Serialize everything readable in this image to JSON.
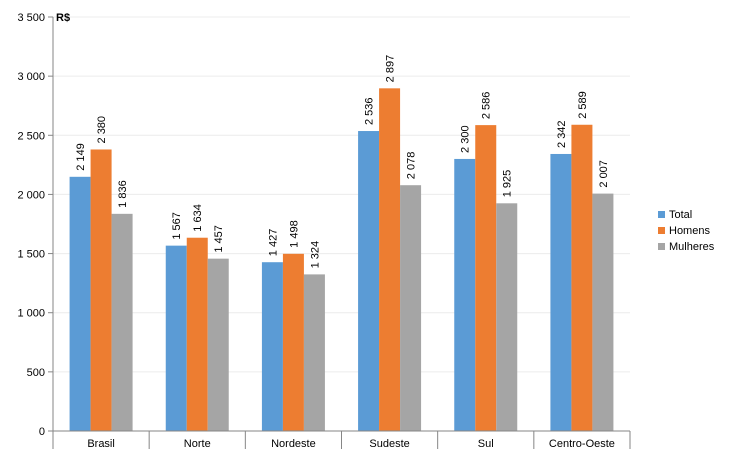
{
  "chart_data": {
    "type": "bar",
    "title": "",
    "xlabel": "",
    "ylabel": "R$",
    "ylim": [
      0,
      3500
    ],
    "yticks": [
      0,
      500,
      1000,
      1500,
      2000,
      2500,
      3000,
      3500
    ],
    "ytick_labels": [
      "0",
      "500",
      "1 000",
      "1 500",
      "2 000",
      "2 500",
      "3 000",
      "3 500"
    ],
    "grid": true,
    "legend_position": "right",
    "categories": [
      "Brasil",
      "Norte",
      "Nordeste",
      "Sudeste",
      "Sul",
      "Centro-Oeste"
    ],
    "series": [
      {
        "name": "Total",
        "color": "#5b9bd5",
        "values": [
          2149,
          1567,
          1427,
          2536,
          2300,
          2342
        ],
        "labels": [
          "2 149",
          "1 567",
          "1 427",
          "2 536",
          "2 300",
          "2 342"
        ]
      },
      {
        "name": "Homens",
        "color": "#ed7d31",
        "values": [
          2380,
          1634,
          1498,
          2897,
          2586,
          2589
        ],
        "labels": [
          "2 380",
          "1 634",
          "1 498",
          "2 897",
          "2 586",
          "2 589"
        ]
      },
      {
        "name": "Mulheres",
        "color": "#a5a5a5",
        "values": [
          1836,
          1457,
          1324,
          2078,
          1925,
          2007
        ],
        "labels": [
          "1 836",
          "1 457",
          "1 324",
          "2 078",
          "1 925",
          "2 007"
        ]
      }
    ]
  }
}
